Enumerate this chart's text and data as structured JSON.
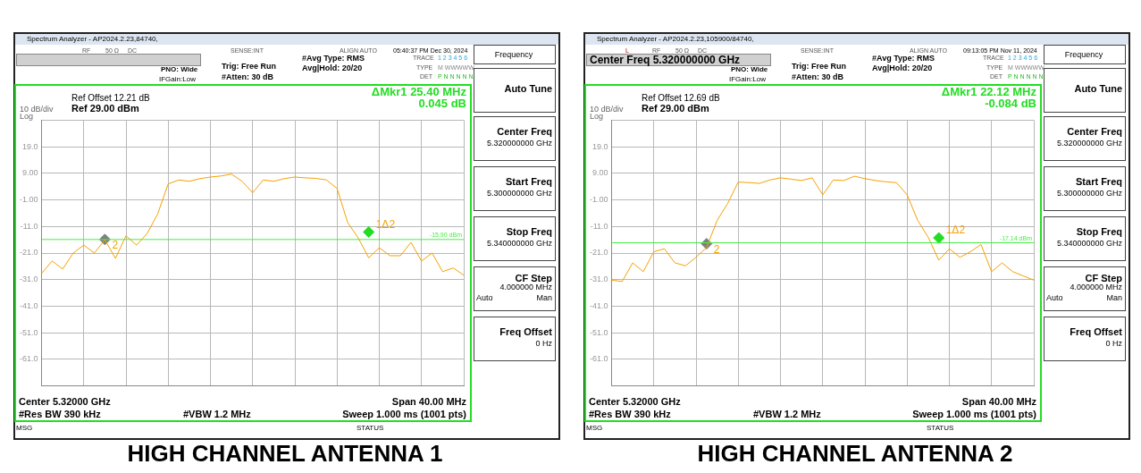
{
  "chart_data": [
    {
      "type": "line",
      "title": "HIGH CHANNEL ANTENNA 1",
      "ylim": [
        -71,
        29
      ],
      "categories": [
        null,
        null,
        null,
        null,
        null,
        null,
        null,
        null,
        null,
        null,
        null,
        null,
        null,
        null,
        null,
        null,
        null,
        null,
        null,
        null,
        null,
        null,
        null,
        null,
        null,
        null,
        null,
        null,
        null,
        null,
        null,
        null,
        null,
        null,
        null,
        null,
        null,
        null,
        null,
        null,
        null
      ],
      "yticks": [
        {
          "value": 29,
          "label": null
        },
        {
          "value": 19,
          "label": "19.0"
        },
        {
          "value": 9,
          "label": "9.00"
        },
        {
          "value": -1,
          "label": "-1.00"
        },
        {
          "value": -11,
          "label": "-11.0"
        },
        {
          "value": -21,
          "label": "-21.0"
        },
        {
          "value": -31,
          "label": "-31.0"
        },
        {
          "value": -41,
          "label": "-41.0"
        },
        {
          "value": -51,
          "label": "-51.0"
        },
        {
          "value": -61,
          "label": "-61.0"
        },
        {
          "value": -71,
          "label": null
        }
      ],
      "tick_labels": "y",
      "grid": true,
      "marker": "none",
      "line_style": "solid",
      "series": [
        {
          "type": "line",
          "color": "#f5a000",
          "values": [
            -28.7,
            -24,
            -27,
            -21,
            -18,
            -21,
            -16,
            -23,
            -14.5,
            -18,
            -13.7,
            -6.3,
            5,
            6.5,
            6,
            7,
            7.6,
            8,
            8.7,
            6,
            1.7,
            6.5,
            6,
            7,
            7.6,
            7.3,
            7.1,
            6.5,
            3.3,
            -9.5,
            -15.3,
            -22.8,
            -19,
            -22,
            -22,
            -17,
            -24,
            -21,
            -28,
            -26.6,
            -29.3
          ]
        },
        {
          "type": "scatter",
          "name": "2",
          "marker": "diamond",
          "color": "#808080",
          "values": [
            null,
            null,
            null,
            null,
            null,
            null,
            -15.9,
            null,
            null,
            null,
            null,
            null,
            null,
            null,
            null,
            null,
            null,
            null,
            null,
            null,
            null,
            null,
            null,
            null,
            null,
            null,
            null,
            null,
            null,
            null,
            null,
            null,
            null,
            null,
            null,
            null,
            null,
            null,
            null,
            null,
            null
          ]
        },
        {
          "type": "scatter",
          "name": "1Δ2",
          "marker": "diamond",
          "color": "#22dd22",
          "values": [
            null,
            null,
            null,
            null,
            null,
            null,
            null,
            null,
            null,
            null,
            null,
            null,
            null,
            null,
            null,
            null,
            null,
            null,
            null,
            null,
            null,
            null,
            null,
            null,
            null,
            null,
            null,
            null,
            null,
            null,
            null,
            -13.1,
            null,
            null,
            null,
            null,
            null,
            null,
            null,
            null,
            null
          ]
        }
      ],
      "ref_lines": [
        {
          "axis": "y",
          "value": -15.9,
          "label": "-15.90 dBm",
          "color": "#44ee44"
        }
      ],
      "annotations": [
        "Spectrum Analyzer - AP2024.2.23,84740,",
        "RF",
        "50 Ω",
        "DC",
        "SENSE:INT",
        "ALIGN AUTO",
        "05:40:37 PM Dec 30, 2024",
        "PNO: Wide",
        "IFGain:Low",
        "Trig: Free Run",
        "#Atten: 30 dB",
        "#Avg Type: RMS",
        "Avg|Hold: 20/20",
        "TRACE",
        "1 2 3 4 5 6",
        "TYPE",
        "M WWWWW",
        "DET",
        "P N N N N N",
        "Ref Offset 12.21 dB",
        "Ref 29.00 dBm",
        "10 dB/div",
        "Log",
        "ΔMkr1 25.40 MHz",
        "0.045 dB",
        "Center 5.32000 GHz",
        "Span 40.00 MHz",
        "#Res BW 390 kHz",
        "#VBW 1.2 MHz",
        "Sweep  1.000 ms (1001 pts)",
        "MSG",
        "STATUS",
        "Frequency",
        "Auto Tune",
        "Center Freq",
        "5.320000000 GHz",
        "Start Freq",
        "5.300000000 GHz",
        "Stop Freq",
        "5.340000000 GHz",
        "CF Step",
        "4.000000 MHz",
        "Auto",
        "Man",
        "Freq Offset",
        "0 Hz"
      ]
    },
    {
      "type": "line",
      "title": "HIGH CHANNEL ANTENNA 2",
      "ylim": [
        -71,
        29
      ],
      "categories": [
        null,
        null,
        null,
        null,
        null,
        null,
        null,
        null,
        null,
        null,
        null,
        null,
        null,
        null,
        null,
        null,
        null,
        null,
        null,
        null,
        null,
        null,
        null,
        null,
        null,
        null,
        null,
        null,
        null,
        null,
        null,
        null,
        null,
        null,
        null,
        null,
        null,
        null,
        null,
        null,
        null
      ],
      "yticks": [
        {
          "value": 29,
          "label": null
        },
        {
          "value": 19,
          "label": "19.0"
        },
        {
          "value": 9,
          "label": "9.00"
        },
        {
          "value": -1,
          "label": "-1.00"
        },
        {
          "value": -11,
          "label": "-11.0"
        },
        {
          "value": -21,
          "label": "-21.0"
        },
        {
          "value": -31,
          "label": "-31.0"
        },
        {
          "value": -41,
          "label": "-41.0"
        },
        {
          "value": -51,
          "label": "-51.0"
        },
        {
          "value": -61,
          "label": "-61.0"
        },
        {
          "value": -71,
          "label": null
        }
      ],
      "tick_labels": "y",
      "grid": true,
      "marker": "none",
      "line_style": "solid",
      "series": [
        {
          "type": "line",
          "color": "#f5a000",
          "values": [
            -31.2,
            -31.7,
            -24.7,
            -28,
            -20.5,
            -19.4,
            -24.7,
            -25.8,
            -22.6,
            -18.9,
            -8.7,
            -2.3,
            5.7,
            5.5,
            5.2,
            6.5,
            7.3,
            6.8,
            6.3,
            7.3,
            0.9,
            6.5,
            6.3,
            7.9,
            7,
            6.3,
            5.8,
            5.5,
            0.9,
            -8.7,
            -15.1,
            -23.7,
            -19.4,
            -22.6,
            -20.5,
            -17.8,
            -28,
            -24.7,
            -28,
            -29.6,
            -31.2
          ]
        },
        {
          "type": "scatter",
          "name": "2",
          "marker": "diamond",
          "color": "#808080",
          "values": [
            null,
            null,
            null,
            null,
            null,
            null,
            null,
            null,
            null,
            -17.5,
            null,
            null,
            null,
            null,
            null,
            null,
            null,
            null,
            null,
            null,
            null,
            null,
            null,
            null,
            null,
            null,
            null,
            null,
            null,
            null,
            null,
            null,
            null,
            null,
            null,
            null,
            null,
            null,
            null,
            null,
            null
          ]
        },
        {
          "type": "scatter",
          "name": "1Δ2",
          "marker": "diamond",
          "color": "#22dd22",
          "values": [
            null,
            null,
            null,
            null,
            null,
            null,
            null,
            null,
            null,
            null,
            null,
            null,
            null,
            null,
            null,
            null,
            null,
            null,
            null,
            null,
            null,
            null,
            null,
            null,
            null,
            null,
            null,
            null,
            null,
            null,
            null,
            -15.3,
            null,
            null,
            null,
            null,
            null,
            null,
            null,
            null,
            null
          ]
        }
      ],
      "ref_lines": [
        {
          "axis": "y",
          "value": -17.14,
          "label": "-17.14 dBm",
          "color": "#44ee44"
        }
      ],
      "annotations": [
        "Spectrum Analyzer - AP2024.2.23,105900/84740,",
        "RF",
        "50 Ω",
        "DC",
        "SENSE:INT",
        "ALIGN AUTO",
        "09:13:05 PM Nov 11, 2024",
        "PNO: Wide",
        "IFGain:Low",
        "Trig: Free Run",
        "#Atten: 30 dB",
        "#Avg Type: RMS",
        "Avg|Hold: 20/20",
        "TRACE",
        "1 2 3 4 5 6",
        "TYPE",
        "M WWWWW",
        "DET",
        "P N N N N N",
        "Ref Offset 12.69 dB",
        "Ref 29.00 dBm",
        "10 dB/div",
        "Log",
        "ΔMkr1 22.12 MHz",
        "-0.084 dB",
        "Center 5.32000 GHz",
        "Span 40.00 MHz",
        "#Res BW 390 kHz",
        "#VBW 1.2 MHz",
        "Sweep  1.000 ms (1001 pts)",
        "MSG",
        "STATUS",
        "Frequency",
        "Auto Tune",
        "Center Freq",
        "5.320000000 GHz",
        "Start Freq",
        "5.300000000 GHz",
        "Stop Freq",
        "5.340000000 GHz",
        "CF Step",
        "4.000000 MHz",
        "Auto",
        "Man",
        "Freq Offset",
        "0 Hz",
        "L",
        "Center Freq 5.320000000 GHz"
      ]
    }
  ]
}
